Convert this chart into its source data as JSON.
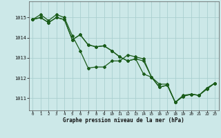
{
  "title": "Graphe pression niveau de la mer (hPa)",
  "background_color": "#cce8e8",
  "grid_color": "#aacfcf",
  "line_color": "#1a5c1a",
  "xlim": [
    -0.5,
    23.5
  ],
  "ylim": [
    1010.4,
    1015.8
  ],
  "xticks": [
    0,
    1,
    2,
    3,
    4,
    5,
    6,
    7,
    8,
    9,
    10,
    11,
    12,
    13,
    14,
    15,
    16,
    17,
    18,
    19,
    20,
    21,
    22,
    23
  ],
  "yticks": [
    1011,
    1012,
    1013,
    1014,
    1015
  ],
  "series": [
    [
      1014.9,
      1015.15,
      1014.85,
      1015.15,
      1015.0,
      1014.1,
      1013.35,
      1012.5,
      1012.55,
      1012.55,
      1012.85,
      1012.85,
      1013.15,
      1013.05,
      1012.95,
      1012.05,
      1011.55,
      1011.65,
      1010.8,
      1011.1,
      1011.2,
      1011.15,
      1011.5,
      1011.75
    ],
    [
      1014.9,
      1015.0,
      1014.75,
      1015.0,
      1014.9,
      1013.9,
      1014.15,
      1013.65,
      1013.55,
      1013.6,
      1013.35,
      1013.05,
      1012.85,
      1012.95,
      1012.85,
      1012.05,
      1011.55,
      1011.65,
      1010.8,
      1011.1,
      1011.2,
      1011.15,
      1011.5,
      1011.75
    ],
    [
      1014.9,
      1015.0,
      1014.75,
      1015.0,
      1014.9,
      1013.9,
      1014.15,
      1013.65,
      1013.55,
      1013.6,
      1013.35,
      1013.05,
      1012.85,
      1012.95,
      1012.2,
      1012.05,
      1011.7,
      1011.7,
      1010.8,
      1011.15,
      1011.2,
      1011.15,
      1011.45,
      1011.75
    ]
  ],
  "marker": "D",
  "marker_size": 2.0,
  "line_width": 0.9,
  "figsize": [
    3.2,
    2.0
  ],
  "dpi": 100
}
